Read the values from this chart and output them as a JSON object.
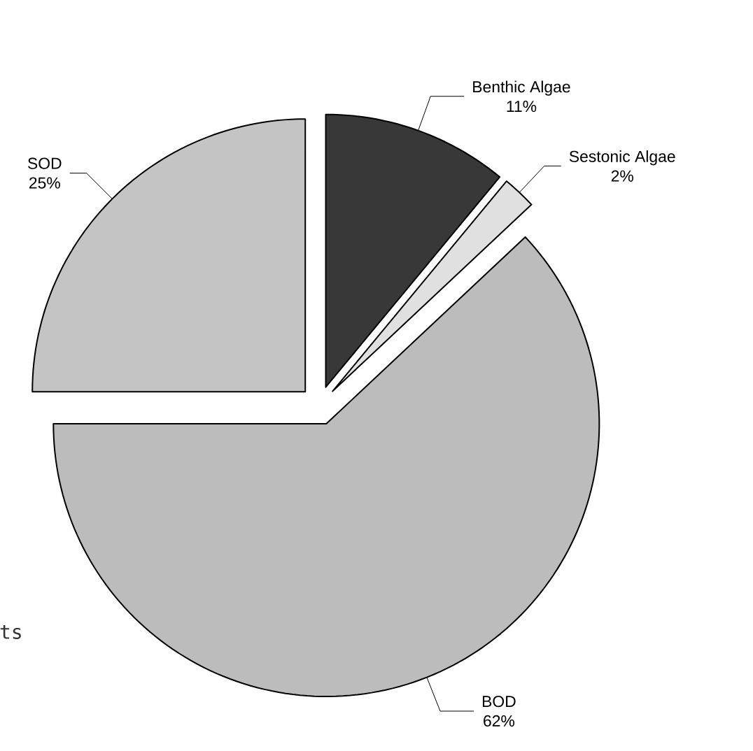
{
  "chart_data": {
    "type": "pie",
    "categories": [
      "Benthic Algae",
      "Sestonic Algae",
      "BOD",
      "SOD"
    ],
    "values": [
      11,
      2,
      62,
      25
    ],
    "value_labels": [
      "11%",
      "2%",
      "62%",
      "25%"
    ],
    "colors": [
      "#383838",
      "#e0e0e0",
      "#bcbcbc",
      "#c4c4c4"
    ],
    "legend": false,
    "annotations": [
      "ts"
    ]
  }
}
